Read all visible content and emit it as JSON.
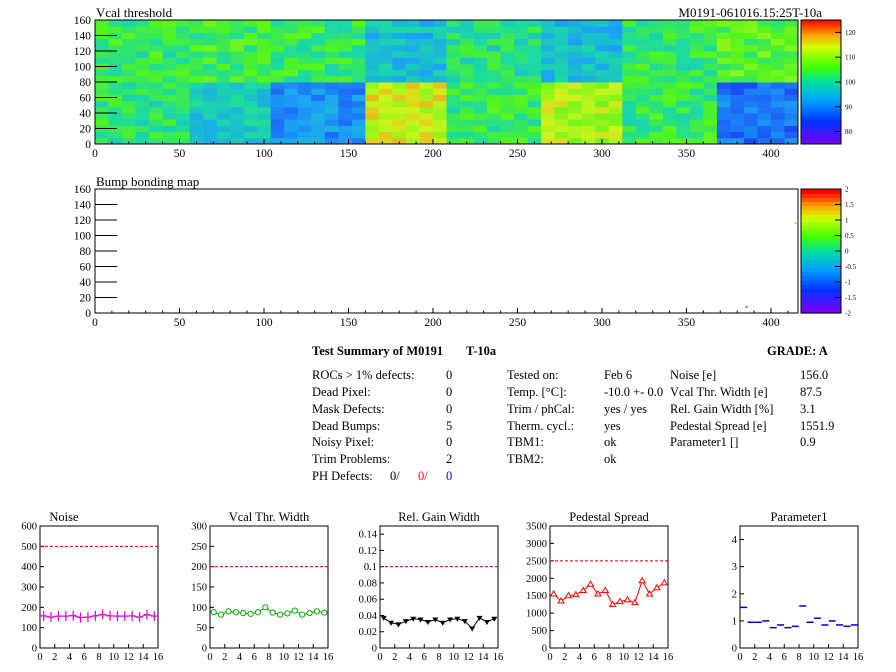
{
  "heatmap_top": {
    "title": "Vcal threshold",
    "module_label": "M0191-061016.15:25T-10a",
    "x_ticks": [
      "0",
      "50",
      "100",
      "150",
      "200",
      "250",
      "300",
      "350",
      "400"
    ],
    "y_ticks": [
      "0",
      "20",
      "40",
      "60",
      "80",
      "100",
      "120",
      "140",
      "160"
    ],
    "colorbar_ticks": [
      "80",
      "90",
      "100",
      "110",
      "120"
    ],
    "xlim": [
      0,
      416
    ],
    "ylim": [
      0,
      160
    ],
    "zlim": [
      75,
      125
    ]
  },
  "heatmap_bottom": {
    "title": "Bump bonding map",
    "x_ticks": [
      "0",
      "50",
      "100",
      "150",
      "200",
      "250",
      "300",
      "350",
      "400"
    ],
    "y_ticks": [
      "0",
      "20",
      "40",
      "60",
      "80",
      "100",
      "120",
      "140",
      "160"
    ],
    "colorbar_ticks": [
      "-2",
      "-1.5",
      "-1",
      "-0.5",
      "0",
      "0.5",
      "1",
      "1.5",
      "2"
    ],
    "xlim": [
      0,
      416
    ],
    "ylim": [
      0,
      160
    ],
    "zlim": [
      -2,
      2
    ]
  },
  "summary": {
    "title": "Test Summary of M0191",
    "temp_tag": "T-10a",
    "grade": "GRADE:  A",
    "left": [
      {
        "label": "ROCs > 1% defects:",
        "value": "0"
      },
      {
        "label": "Dead Pixel:",
        "value": "0"
      },
      {
        "label": "Mask Defects:",
        "value": "0"
      },
      {
        "label": "Dead Bumps:",
        "value": "5"
      },
      {
        "label": "Noisy Pixel:",
        "value": "0"
      },
      {
        "label": "Trim Problems:",
        "value": "2"
      }
    ],
    "ph_defects": {
      "label": "PH Defects:",
      "v1": "0/",
      "v2": "0/",
      "v3": "0"
    },
    "middle": [
      {
        "label": "Tested on:",
        "value": "Feb 6"
      },
      {
        "label": "Temp. [°C]:",
        "value": "-10.0 +- 0.0"
      },
      {
        "label": "Trim / phCal:",
        "value": "yes / yes"
      },
      {
        "label": "Therm. cycl.:",
        "value": "yes"
      },
      {
        "label": "TBM1:",
        "value": "ok"
      },
      {
        "label": "TBM2:",
        "value": "ok"
      }
    ],
    "right": [
      {
        "label": "Noise [e]",
        "value": "156.0"
      },
      {
        "label": "Vcal Thr. Width [e]",
        "value": "87.5"
      },
      {
        "label": "Rel. Gain Width [%]",
        "value": "3.1"
      },
      {
        "label": "Pedestal Spread [e]",
        "value": "1551.9"
      },
      {
        "label": "Parameter1 []",
        "value": "0.9"
      }
    ]
  },
  "colors": {
    "noise": "#dd00dd",
    "vcal": "#00aa00",
    "gain": "#000000",
    "pedestal": "#ff0000",
    "param": "#0000cc",
    "limit": "#cc0000"
  },
  "chart_data": [
    {
      "type": "heatmap",
      "title": "Vcal threshold",
      "x_range": [
        0,
        416
      ],
      "y_range": [
        0,
        160
      ],
      "z_range": [
        75,
        125
      ],
      "roc_grid": {
        "cols": 8,
        "rows": 2,
        "roc_width": 52,
        "roc_height": 80
      },
      "roc_mean_values_bottom_row": [
        102,
        97,
        91,
        114,
        103,
        112,
        103,
        88
      ],
      "roc_mean_values_top_row": [
        103,
        104,
        103,
        96,
        101,
        96,
        103,
        106
      ]
    },
    {
      "type": "heatmap",
      "title": "Bump bonding map",
      "x_range": [
        0,
        416
      ],
      "y_range": [
        0,
        160
      ],
      "z_range": [
        -2,
        2
      ],
      "nonzero_points": [
        {
          "x": 414,
          "y": 117,
          "value": 1.5
        },
        {
          "x": 385,
          "y": 9,
          "value": -1
        }
      ]
    },
    {
      "type": "line",
      "title": "Noise",
      "x": [
        0,
        1,
        2,
        3,
        4,
        5,
        6,
        7,
        8,
        9,
        10,
        11,
        12,
        13,
        14,
        15
      ],
      "y": [
        158,
        152,
        157,
        157,
        159,
        150,
        152,
        158,
        165,
        158,
        157,
        157,
        158,
        152,
        164,
        157
      ],
      "limit": 500,
      "xlim": [
        0,
        16
      ],
      "ylim": [
        0,
        600
      ],
      "yticks": [
        "0",
        "100",
        "200",
        "300",
        "400",
        "500",
        "600"
      ]
    },
    {
      "type": "line",
      "title": "Vcal Thr. Width",
      "x": [
        0,
        1,
        2,
        3,
        4,
        5,
        6,
        7,
        8,
        9,
        10,
        11,
        12,
        13,
        14,
        15
      ],
      "y": [
        88,
        82,
        90,
        88,
        86,
        84,
        88,
        100,
        87,
        82,
        85,
        92,
        82,
        86,
        90,
        87
      ],
      "limit": 200,
      "xlim": [
        0,
        16
      ],
      "ylim": [
        0,
        300
      ],
      "yticks": [
        "0",
        "50",
        "100",
        "150",
        "200",
        "250",
        "300"
      ]
    },
    {
      "type": "line",
      "title": "Rel. Gain Width",
      "x": [
        0,
        1,
        2,
        3,
        4,
        5,
        6,
        7,
        8,
        9,
        10,
        11,
        12,
        13,
        14,
        15
      ],
      "y": [
        0.037,
        0.031,
        0.029,
        0.033,
        0.036,
        0.035,
        0.032,
        0.035,
        0.031,
        0.035,
        0.036,
        0.033,
        0.024,
        0.037,
        0.032,
        0.036
      ],
      "limit": 0.1,
      "xlim": [
        0,
        16
      ],
      "ylim": [
        0,
        0.15
      ],
      "yticks": [
        "0",
        "0.02",
        "0.04",
        "0.06",
        "0.08",
        "0.1",
        "0.12",
        "0.14"
      ]
    },
    {
      "type": "line",
      "title": "Pedestal Spread",
      "x": [
        0,
        1,
        2,
        3,
        4,
        5,
        6,
        7,
        8,
        9,
        10,
        11,
        12,
        13,
        14,
        15
      ],
      "y": [
        1550,
        1350,
        1500,
        1530,
        1650,
        1830,
        1550,
        1650,
        1250,
        1330,
        1380,
        1300,
        1930,
        1550,
        1730,
        1870
      ],
      "limit": 2500,
      "xlim": [
        0,
        16
      ],
      "ylim": [
        0,
        3500
      ],
      "yticks": [
        "0",
        "500",
        "1000",
        "1500",
        "2000",
        "2500",
        "3000",
        "3500"
      ]
    },
    {
      "type": "scatter",
      "title": "Parameter1",
      "x": [
        0,
        1,
        2,
        3,
        4,
        5,
        6,
        7,
        8,
        9,
        10,
        11,
        12,
        13,
        14,
        15
      ],
      "y": [
        1.5,
        0.95,
        0.95,
        1.0,
        0.75,
        0.85,
        0.75,
        0.8,
        1.55,
        0.95,
        1.1,
        0.85,
        1.0,
        0.85,
        0.8,
        0.85
      ],
      "xlim": [
        0,
        16
      ],
      "ylim": [
        0,
        4.5
      ],
      "yticks": [
        "0",
        "1",
        "2",
        "3",
        "4"
      ]
    }
  ],
  "small_x_ticks": [
    "0",
    "2",
    "4",
    "6",
    "8",
    "10",
    "12",
    "14",
    "16"
  ]
}
